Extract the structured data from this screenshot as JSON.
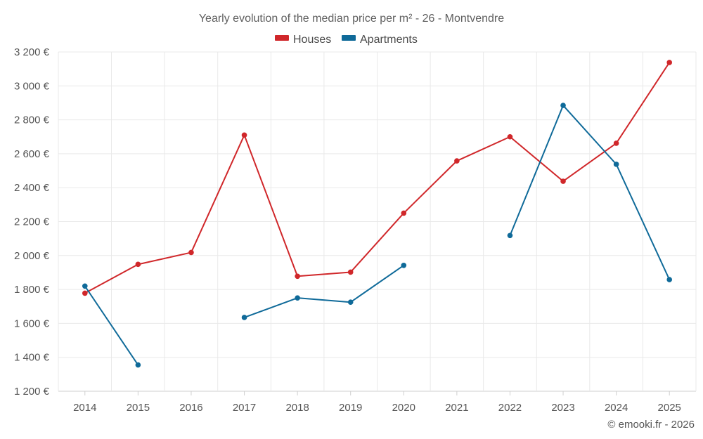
{
  "chart_data": {
    "type": "line",
    "title": "Yearly evolution of the median price per m² - 26 - Montvendre",
    "categories": [
      "2014",
      "2015",
      "2016",
      "2017",
      "2018",
      "2019",
      "2020",
      "2021",
      "2022",
      "2023",
      "2024",
      "2025"
    ],
    "series": [
      {
        "name": "Houses",
        "color": "#d0272a",
        "values": [
          1778,
          1948,
          2018,
          2710,
          1878,
          1902,
          2250,
          2558,
          2700,
          2438,
          2662,
          3138
        ]
      },
      {
        "name": "Apartments",
        "color": "#0f6a99",
        "values": [
          1820,
          1355,
          null,
          1635,
          1750,
          1725,
          1942,
          null,
          2118,
          2885,
          2538,
          1858
        ]
      }
    ],
    "ylim": [
      1200,
      3200
    ],
    "yticks": [
      1200,
      1400,
      1600,
      1800,
      2000,
      2200,
      2400,
      2600,
      2800,
      3000,
      3200
    ],
    "ytick_labels": [
      "1 200 €",
      "1 400 €",
      "1 600 €",
      "1 800 €",
      "2 000 €",
      "2 200 €",
      "2 400 €",
      "2 600 €",
      "2 800 €",
      "3 000 €",
      "3 200 €"
    ],
    "xlabel": "",
    "ylabel": "",
    "grid": true,
    "legend_position": "top-center"
  },
  "credit": "© emooki.fr - 2026"
}
